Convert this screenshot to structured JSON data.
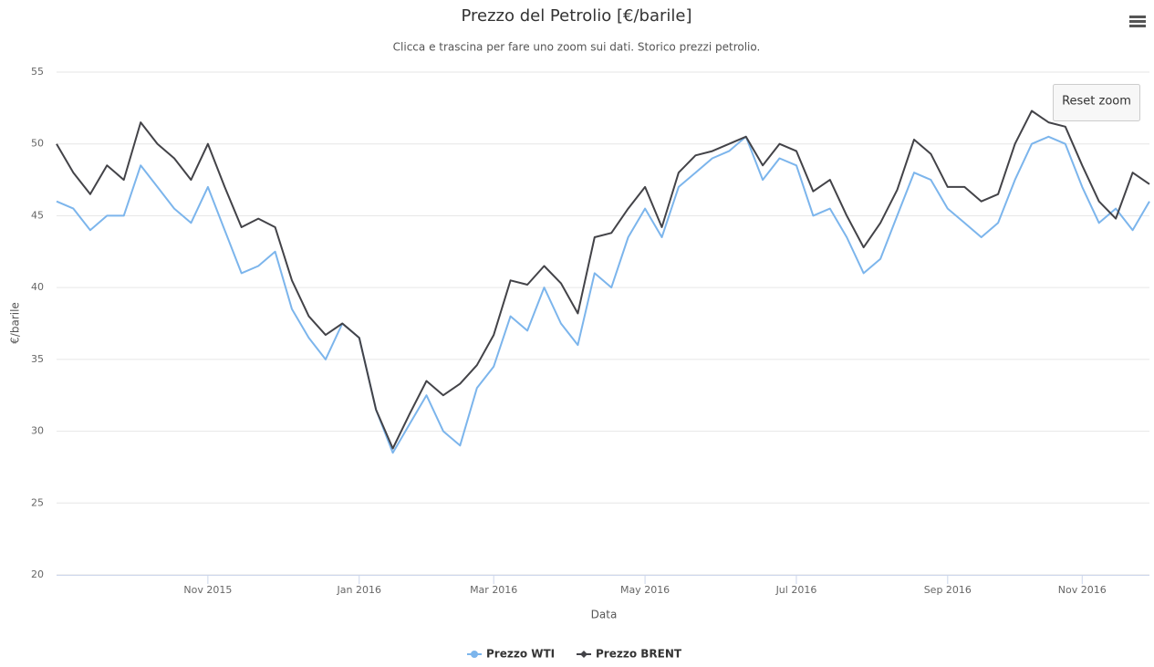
{
  "chart_data": {
    "type": "line",
    "title": "Prezzo del Petrolio [€/barile]",
    "subtitle": "Clicca e trascina per fare uno zoom sui dati. Storico prezzi petrolio.",
    "x_label": "Data",
    "y_label": "€/barile",
    "categories": [
      null,
      null,
      null,
      null,
      null,
      null,
      null,
      null,
      null,
      "Nov 2015",
      null,
      null,
      null,
      null,
      null,
      null,
      null,
      null,
      "Jan 2016",
      null,
      null,
      null,
      null,
      null,
      null,
      null,
      "Mar 2016",
      null,
      null,
      null,
      null,
      null,
      null,
      null,
      null,
      "May 2016",
      null,
      null,
      null,
      null,
      null,
      null,
      null,
      null,
      "Jul 2016",
      null,
      null,
      null,
      null,
      null,
      null,
      null,
      null,
      "Sep 2016",
      null,
      null,
      null,
      null,
      null,
      null,
      null,
      "Nov 2016",
      null,
      null,
      null,
      null
    ],
    "series": [
      {
        "name": "Prezzo WTI",
        "color": "#7cb5ec",
        "values": [
          46,
          45.5,
          44,
          45,
          45,
          48.5,
          47,
          45.5,
          44.5,
          47,
          44,
          41,
          41.5,
          42.5,
          38.5,
          36.5,
          35,
          37.5,
          36.5,
          31.5,
          28.5,
          30.5,
          32.5,
          30,
          29,
          33,
          34.5,
          38,
          37,
          40,
          37.5,
          36,
          41,
          40,
          43.5,
          45.5,
          43.5,
          47,
          48,
          49,
          49.5,
          50.5,
          47.5,
          49,
          48.5,
          45,
          45.5,
          43.5,
          41,
          42,
          45,
          48,
          47.5,
          45.5,
          44.5,
          43.5,
          44.5,
          47.5,
          50,
          50.5,
          50,
          47,
          44.5,
          45.5,
          44,
          46
        ]
      },
      {
        "name": "Prezzo BRENT",
        "color": "#434348",
        "values": [
          50,
          48,
          46.5,
          48.5,
          47.5,
          51.5,
          50,
          49,
          47.5,
          50,
          47,
          44.2,
          44.8,
          44.2,
          40.5,
          38,
          36.7,
          37.5,
          36.5,
          31.5,
          28.8,
          31.2,
          33.5,
          32.5,
          33.3,
          34.6,
          36.7,
          40.5,
          40.2,
          41.5,
          40.3,
          38.2,
          43.5,
          43.8,
          45.5,
          47,
          44.2,
          48,
          49.2,
          49.5,
          50,
          50.5,
          48.5,
          50,
          49.5,
          46.7,
          47.5,
          45,
          42.8,
          44.5,
          46.8,
          50.3,
          49.3,
          47,
          47,
          46,
          46.5,
          50,
          52.3,
          51.5,
          51.2,
          48.5,
          46,
          44.8,
          48,
          47.2
        ]
      }
    ],
    "ylim": [
      20,
      55
    ],
    "yticks": [
      20,
      25,
      30,
      35,
      40,
      45,
      50,
      55
    ],
    "grid": true,
    "legend": "bottom"
  },
  "ui": {
    "reset_zoom": "Reset zoom"
  }
}
